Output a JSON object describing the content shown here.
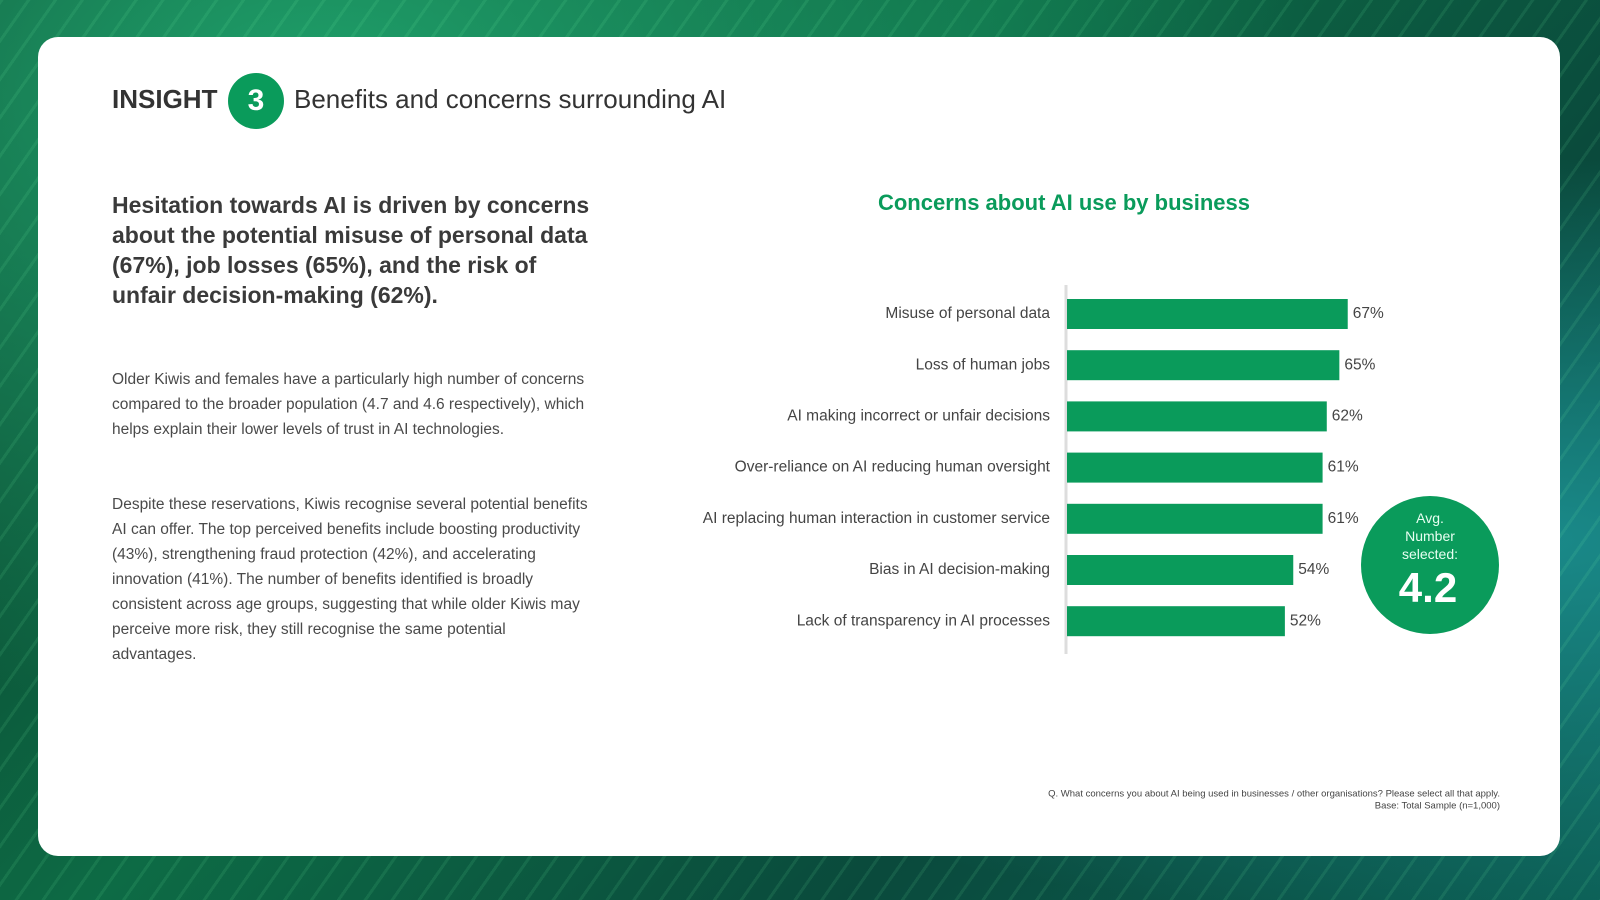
{
  "header": {
    "insight_label": "INSIGHT",
    "insight_number": "3",
    "title": "Benefits and concerns surrounding AI"
  },
  "headline": "Hesitation towards AI is driven by concerns about the potential misuse of personal data (67%), job losses (65%), and the risk of unfair decision-making (62%).",
  "paragraphs": [
    "Older Kiwis and females have a particularly high number of concerns compared to the broader population (4.7 and 4.6 respectively), which helps explain their lower levels of trust in AI technologies.",
    "Despite these reservations, Kiwis recognise several potential benefits AI can offer. The top perceived benefits include boosting productivity (43%), strengthening fraud protection (42%), and accelerating innovation (41%). The number of benefits identified is broadly consistent across age groups, suggesting that while older Kiwis may perceive more risk, they still recognise the same potential advantages."
  ],
  "chart_data": {
    "type": "hbar",
    "title": "Concerns about AI use by business",
    "categories": [
      "Misuse of personal data",
      "Loss of human jobs",
      "AI making incorrect or unfair decisions",
      "Over-reliance on AI reducing human oversight",
      "AI replacing human interaction in customer service",
      "Bias in AI decision-making",
      "Lack of transparency in AI processes"
    ],
    "values": [
      67,
      65,
      62,
      61,
      61,
      54,
      52
    ],
    "value_labels": [
      "67%",
      "65%",
      "62%",
      "61%",
      "61%",
      "54%",
      "52%"
    ],
    "color": "#0a9b5b",
    "annotation": {
      "label": "Avg. Number selected:",
      "value": "4.2"
    }
  },
  "footnote": [
    "Q. What concerns you about AI being used in businesses / other organisations?  Please select all that apply.",
    "Base: Total Sample (n=1,000)"
  ]
}
